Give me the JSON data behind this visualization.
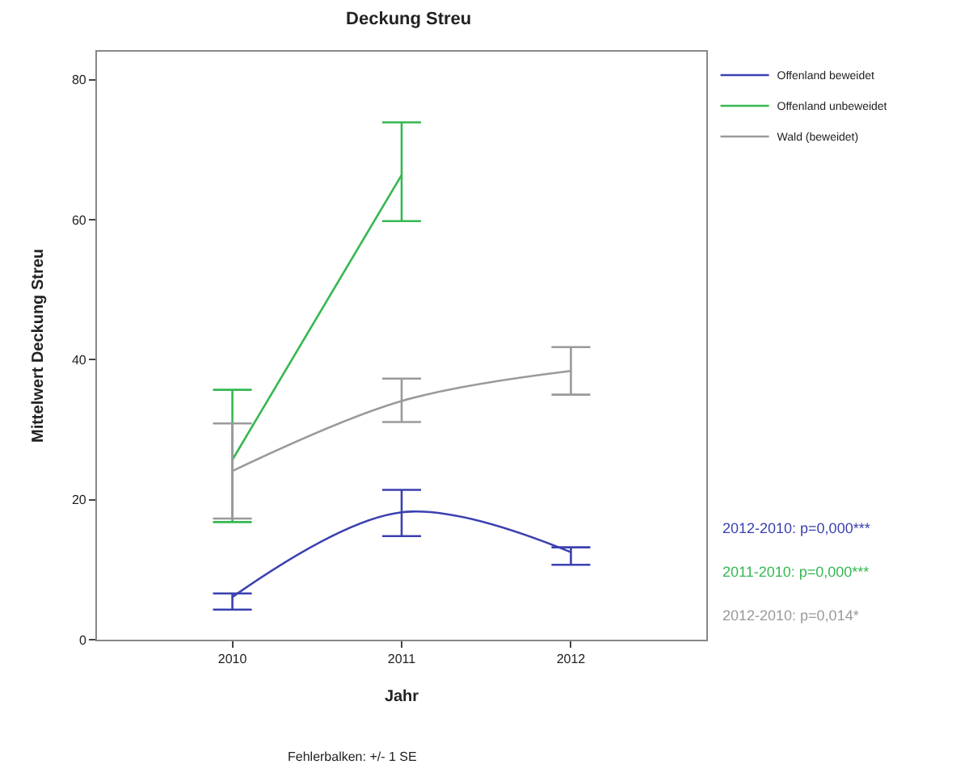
{
  "chart_data": {
    "type": "line",
    "title": "Deckung Streu",
    "xlabel": "Jahr",
    "ylabel": "Mittelwert Deckung Streu",
    "categories": [
      "2010",
      "2011",
      "2012"
    ],
    "series": [
      {
        "name": "Offenland beweidet",
        "color": "#3b40b0",
        "values": [
          6.1,
          18.2,
          12.5
        ],
        "errors": [
          [
            4.3,
            6.6
          ],
          [
            14.8,
            21.4
          ],
          [
            10.7,
            13.2
          ]
        ]
      },
      {
        "name": "Offenland unbeweidet",
        "color": "#35b852",
        "values": [
          25.7,
          66.4,
          null
        ],
        "errors": [
          [
            16.8,
            35.7
          ],
          [
            59.8,
            73.9
          ],
          null
        ]
      },
      {
        "name": "Wald (beweidet)",
        "color": "#9a9a9a",
        "values": [
          24.1,
          34.1,
          38.4
        ],
        "errors": [
          [
            17.3,
            30.9
          ],
          [
            31.1,
            37.3
          ],
          [
            35.0,
            41.8
          ]
        ]
      }
    ],
    "ylim": [
      0,
      84
    ],
    "yticks": [
      0,
      20,
      40,
      60,
      80
    ],
    "annotations": [
      "2012-2010: p=0,000***",
      "2011-2010: p=0,000***",
      "2012-2010: p=0,014*",
      "Fehlerbalken: +/- 1 SE"
    ],
    "legend": "top right",
    "marker": "none",
    "line_style": "solid"
  }
}
